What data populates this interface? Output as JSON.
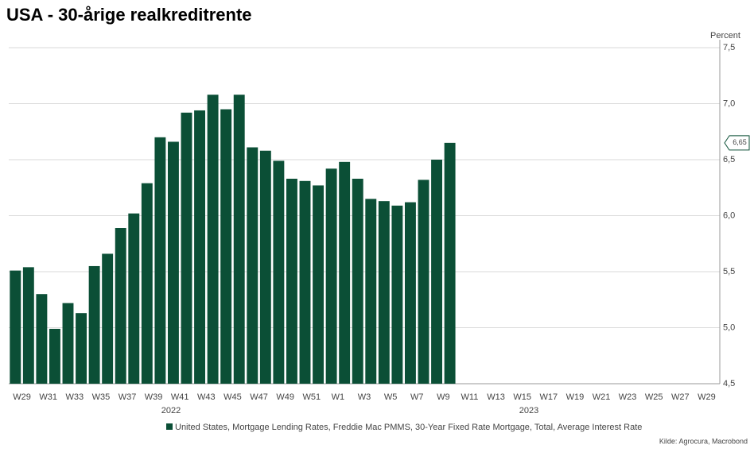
{
  "chart_data": {
    "type": "bar",
    "title": "USA - 30-årige realkreditrente",
    "y_axis_label": "Percent",
    "legend": "United States, Mortgage Lending Rates, Freddie Mac PMMS, 30-Year Fixed Rate Mortgage, Total, Average Interest Rate",
    "source": "Kilde: Agrocura, Macrobond",
    "year_labels": [
      "2022",
      "2023"
    ],
    "color": "#0b4f36",
    "categories": [
      "W29",
      null,
      "W31",
      null,
      "W33",
      null,
      "W35",
      null,
      "W37",
      null,
      "W39",
      null,
      "W41",
      null,
      "W43",
      null,
      "W45",
      null,
      "W47",
      null,
      "W49",
      null,
      "W51",
      null,
      "W1",
      null,
      "W3",
      null,
      "W5",
      null,
      "W7",
      null,
      "W9",
      null,
      "W11",
      null,
      "W13",
      null,
      "W15",
      null,
      "W17",
      null,
      "W19",
      null,
      "W21",
      null,
      "W23",
      null,
      "W25",
      null,
      "W27",
      null,
      "W29",
      null
    ],
    "values": [
      5.51,
      5.54,
      5.3,
      4.99,
      5.22,
      5.13,
      5.55,
      5.66,
      5.89,
      6.02,
      6.29,
      6.7,
      6.66,
      6.92,
      6.94,
      7.08,
      6.95,
      7.08,
      6.61,
      6.58,
      6.49,
      6.33,
      6.31,
      6.27,
      6.42,
      6.48,
      6.33,
      6.15,
      6.13,
      6.09,
      6.12,
      6.32,
      6.5,
      6.65,
      null,
      null,
      null,
      null,
      null,
      null,
      null,
      null,
      null,
      null,
      null,
      null,
      null,
      null,
      null,
      null,
      null,
      null,
      null,
      null
    ],
    "value_labels": [
      null,
      null,
      null,
      null,
      null,
      null,
      null,
      null,
      null,
      null,
      null,
      null,
      null,
      null,
      null,
      null,
      null,
      null,
      null,
      null,
      null,
      null,
      null,
      null,
      null,
      null,
      null,
      null,
      null,
      null,
      null,
      null,
      null,
      "6,65",
      null,
      null,
      null,
      null,
      null,
      null,
      null,
      null,
      null,
      null,
      null,
      null,
      null,
      null,
      null,
      null,
      null,
      null,
      null,
      null
    ],
    "ylim": [
      4.5,
      7.5
    ],
    "yticks": [
      {
        "value": 4.5,
        "label": "4,5"
      },
      {
        "value": 5,
        "label": "5,0"
      },
      {
        "value": 5.5,
        "label": "5,5"
      },
      {
        "value": 6,
        "label": "6,0"
      },
      {
        "value": 6.5,
        "label": "6,5"
      },
      {
        "value": 7,
        "label": "7,0"
      },
      {
        "value": 7.5,
        "label": "7,5"
      }
    ],
    "grid": true
  }
}
